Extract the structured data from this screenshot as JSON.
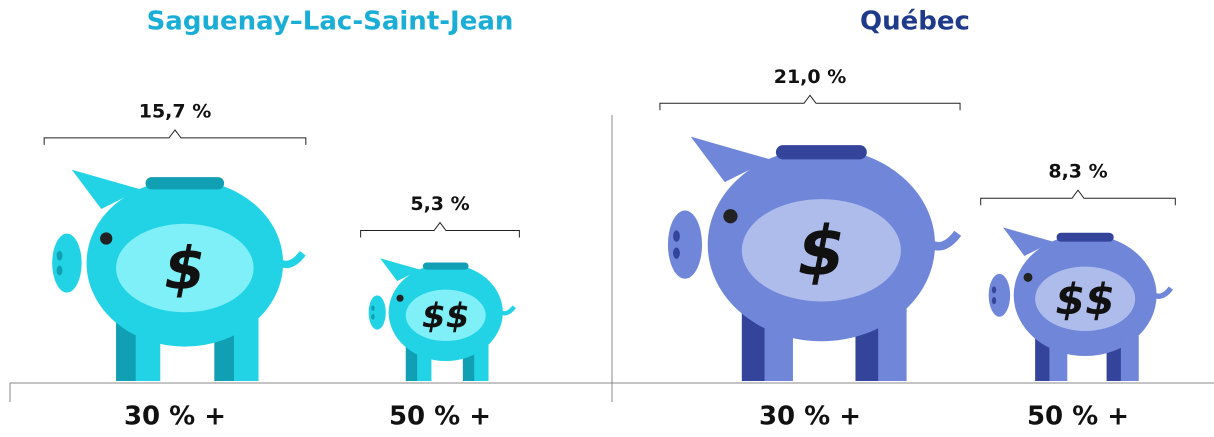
{
  "chart_data": [
    {
      "type": "pictograph",
      "title": "Saguenay–Lac-Saint-Jean",
      "title_color": "#1aaed6",
      "color": "#22d3e6",
      "shade": "#119fb3",
      "belly": "#7ff0f7",
      "categories": [
        "30 % +",
        "50 % +"
      ],
      "values": [
        15.7,
        5.3
      ],
      "value_labels": [
        "15,7 %",
        "5,3 %"
      ],
      "symbols": [
        "$",
        "$$"
      ]
    },
    {
      "type": "pictograph",
      "title": "Québec",
      "title_color": "#1f3a8a",
      "color": "#6f86d9",
      "shade": "#34449a",
      "belly": "#aebcec",
      "categories": [
        "30 % +",
        "50 % +"
      ],
      "values": [
        21.0,
        8.3
      ],
      "value_labels": [
        "21,0 %",
        "8,3 %"
      ],
      "symbols": [
        "$",
        "$$"
      ]
    }
  ]
}
